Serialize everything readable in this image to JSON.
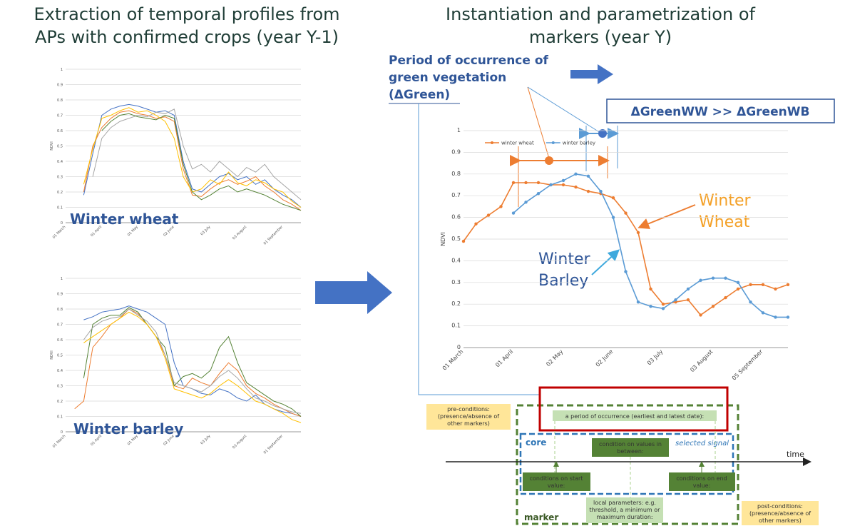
{
  "headings": {
    "left": [
      "Extraction of temporal profiles from",
      "APs with confirmed crops (year Y-1)"
    ],
    "right": [
      "Instantiation and parametrization of",
      "markers (year Y)"
    ]
  },
  "chart_data": [
    {
      "type": "line",
      "label": "Winter wheat",
      "y_label": "NDVI",
      "categories": [
        "01 March",
        null,
        null,
        null,
        "01 April",
        null,
        null,
        null,
        "01 May",
        null,
        null,
        null,
        "02 June",
        null,
        null,
        null,
        "03 July",
        null,
        null,
        null,
        "03 August",
        null,
        null,
        null,
        "01 September",
        null,
        null
      ],
      "ylim": [
        0,
        1
      ],
      "yticks": [
        0,
        0.1,
        0.2,
        0.3,
        0.4,
        0.5,
        0.6,
        0.7,
        0.8,
        0.9,
        1
      ],
      "grid": true,
      "series": [
        {
          "color": "#4472c4",
          "values": [
            null,
            null,
            0.18,
            0.45,
            0.7,
            0.74,
            0.76,
            0.77,
            0.76,
            0.74,
            0.72,
            0.73,
            0.7,
            0.4,
            0.22,
            0.2,
            0.25,
            0.3,
            0.32,
            0.28,
            0.3,
            0.25,
            0.28,
            0.22,
            0.18,
            0.15,
            0.1
          ]
        },
        {
          "color": "#ed7d31",
          "values": [
            null,
            null,
            0.2,
            0.5,
            0.62,
            0.68,
            0.72,
            0.73,
            0.71,
            0.7,
            0.68,
            0.69,
            0.66,
            0.35,
            0.18,
            0.17,
            0.22,
            0.26,
            0.28,
            0.25,
            0.27,
            0.3,
            0.24,
            0.2,
            0.15,
            0.12,
            0.08
          ]
        },
        {
          "color": "#a5a5a5",
          "values": [
            null,
            null,
            null,
            0.3,
            0.55,
            0.62,
            0.66,
            0.68,
            0.7,
            0.69,
            0.72,
            0.71,
            0.74,
            0.5,
            0.35,
            0.38,
            0.33,
            0.4,
            0.35,
            0.3,
            0.36,
            0.33,
            0.38,
            0.3,
            0.25,
            0.2,
            0.15
          ]
        },
        {
          "color": "#ffc000",
          "values": [
            null,
            null,
            0.25,
            0.48,
            0.68,
            0.7,
            0.73,
            0.75,
            0.72,
            0.73,
            0.7,
            0.66,
            0.55,
            0.3,
            0.2,
            0.22,
            0.28,
            0.25,
            0.33,
            0.26,
            0.24,
            0.28,
            0.26,
            0.22,
            0.2,
            0.14,
            0.1
          ]
        },
        {
          "color": "#548235",
          "values": [
            null,
            null,
            null,
            null,
            0.6,
            0.66,
            0.7,
            0.71,
            0.69,
            0.68,
            0.67,
            0.7,
            0.68,
            0.38,
            0.2,
            0.15,
            0.18,
            0.22,
            0.24,
            0.2,
            0.22,
            0.2,
            0.18,
            0.15,
            0.12,
            0.1,
            0.08
          ]
        }
      ]
    },
    {
      "type": "line",
      "label": "Winter barley",
      "y_label": "NDVI",
      "categories": [
        "01 March",
        null,
        null,
        null,
        "01 April",
        null,
        null,
        null,
        "01 May",
        null,
        null,
        null,
        "02 June",
        null,
        null,
        null,
        "03 July",
        null,
        null,
        null,
        "03 August",
        null,
        null,
        null,
        "01 September",
        null,
        null
      ],
      "ylim": [
        0,
        1
      ],
      "yticks": [
        0,
        0.1,
        0.2,
        0.3,
        0.4,
        0.5,
        0.6,
        0.7,
        0.8,
        0.9,
        1
      ],
      "grid": true,
      "series": [
        {
          "color": "#4472c4",
          "values": [
            null,
            null,
            0.73,
            0.75,
            0.78,
            0.79,
            0.8,
            0.82,
            0.8,
            0.78,
            0.74,
            0.7,
            0.45,
            0.3,
            0.28,
            0.25,
            0.24,
            0.28,
            0.26,
            0.22,
            0.2,
            0.24,
            0.18,
            0.15,
            0.13,
            0.12,
            0.1
          ]
        },
        {
          "color": "#ed7d31",
          "values": [
            null,
            0.15,
            0.2,
            0.55,
            0.62,
            0.7,
            0.74,
            0.8,
            0.77,
            0.7,
            0.62,
            0.5,
            0.3,
            0.28,
            0.35,
            0.32,
            0.3,
            0.38,
            0.45,
            0.4,
            0.3,
            0.25,
            0.22,
            0.18,
            0.15,
            0.12,
            0.1
          ]
        },
        {
          "color": "#548235",
          "values": [
            null,
            null,
            0.35,
            0.7,
            0.74,
            0.76,
            0.76,
            0.81,
            0.78,
            0.7,
            0.62,
            0.55,
            0.3,
            0.36,
            0.38,
            0.35,
            0.4,
            0.55,
            0.62,
            0.45,
            0.32,
            0.28,
            0.24,
            0.2,
            0.18,
            0.15,
            0.1
          ]
        },
        {
          "color": "#a5a5a5",
          "values": [
            null,
            null,
            0.6,
            0.68,
            0.72,
            0.74,
            0.75,
            0.8,
            0.76,
            0.72,
            0.65,
            0.5,
            0.32,
            0.3,
            0.28,
            0.26,
            0.3,
            0.36,
            0.4,
            0.35,
            0.28,
            0.22,
            0.2,
            0.17,
            0.15,
            0.13,
            0.12
          ]
        },
        {
          "color": "#ffc000",
          "values": [
            null,
            null,
            0.58,
            0.62,
            0.66,
            0.7,
            0.74,
            0.78,
            0.75,
            0.7,
            0.62,
            0.48,
            0.28,
            0.26,
            0.24,
            0.22,
            0.25,
            0.3,
            0.34,
            0.3,
            0.25,
            0.2,
            0.18,
            0.15,
            0.12,
            0.08,
            0.06
          ]
        }
      ]
    },
    {
      "type": "line",
      "y_label": "NDVI",
      "legend": "top-left",
      "categories": [
        "01 March",
        null,
        null,
        null,
        "01 April",
        null,
        null,
        null,
        "02 May",
        null,
        null,
        null,
        "02 June",
        null,
        null,
        null,
        "03 July",
        null,
        null,
        null,
        "03 August",
        null,
        null,
        null,
        "05 September",
        null,
        null
      ],
      "ylim": [
        0,
        1
      ],
      "yticks": [
        0,
        0.1,
        0.2,
        0.3,
        0.4,
        0.5,
        0.6,
        0.7,
        0.8,
        0.9,
        1
      ],
      "grid": true,
      "series": [
        {
          "name": "winter wheat",
          "color": "#ed7d31",
          "values": [
            0.49,
            0.57,
            0.61,
            0.65,
            0.76,
            0.76,
            0.76,
            0.75,
            0.75,
            0.74,
            0.72,
            0.71,
            0.69,
            0.62,
            0.53,
            0.27,
            0.2,
            0.21,
            0.22,
            0.15,
            0.19,
            0.23,
            0.27,
            0.29,
            0.29,
            0.27,
            0.29
          ]
        },
        {
          "name": "winter barley",
          "color": "#5b9bd5",
          "values": [
            null,
            null,
            null,
            null,
            0.62,
            0.67,
            0.71,
            0.75,
            0.77,
            0.8,
            0.79,
            0.72,
            0.6,
            0.35,
            0.21,
            0.19,
            0.18,
            0.22,
            0.27,
            0.31,
            0.32,
            0.32,
            0.3,
            0.21,
            0.16,
            0.14,
            0.14
          ]
        }
      ]
    }
  ],
  "annotations": {
    "delta_green": [
      "Period of occurrence of",
      "green vegetation",
      "(ΔGreen)"
    ],
    "comparison": "ΔGreenWW >> ΔGreenWB",
    "winter_wheat": [
      "Winter",
      "Wheat"
    ],
    "winter_barley": [
      "Winter",
      "Barley"
    ]
  },
  "marker_diagram": {
    "pre_conditions": [
      "pre-conditions:",
      "(presence/absence of",
      "other markers)"
    ],
    "period": "a period of occurrence  (earliest and latest date):",
    "core": "core",
    "selected_signal": "selected signal",
    "between": [
      "condition on values in",
      "between:"
    ],
    "time": "time",
    "start": [
      "conditions on start",
      "value:"
    ],
    "end": [
      "conditions on end",
      "value:"
    ],
    "local": [
      "local parameters:  e.g.",
      "threshold, a minimum or",
      "maximum duration:"
    ],
    "marker": "marker",
    "post_conditions": [
      "post-conditions:",
      "(presence/absence of",
      "other markers)"
    ]
  }
}
